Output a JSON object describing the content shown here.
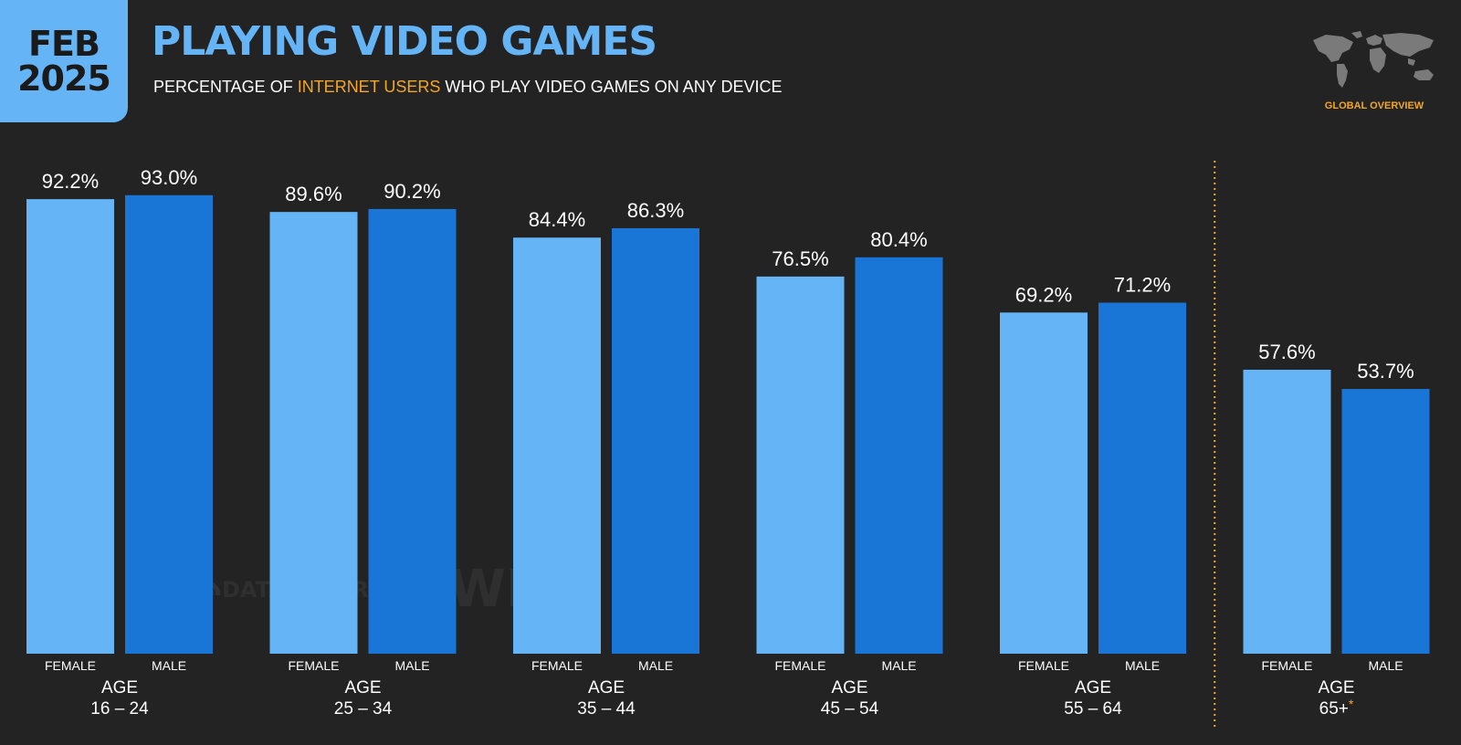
{
  "header": {
    "date_month": "FEB",
    "date_year": "2025",
    "title": "PLAYING VIDEO GAMES",
    "subtitle_pre": "PERCENTAGE OF ",
    "subtitle_highlight": "INTERNET USERS",
    "subtitle_post": " WHO PLAY VIDEO GAMES ON ANY DEVICE"
  },
  "badge": {
    "label": "GLOBAL OVERVIEW",
    "icon": "world-map-icon"
  },
  "watermarks": {
    "datareportal": "DATAREPORTAL",
    "gwi": "GWI."
  },
  "colors": {
    "background": "#232323",
    "female": "#64b4f6",
    "male": "#1976d6",
    "accent": "#f5a623",
    "title": "#64b4f6"
  },
  "chart_data": {
    "type": "bar",
    "group_prefix": "AGE",
    "categories": [
      "16 – 24",
      "25 – 34",
      "35 – 44",
      "45 – 54",
      "55 – 64",
      "65+"
    ],
    "category_markers": [
      "",
      "",
      "",
      "",
      "",
      "*"
    ],
    "series": [
      {
        "name": "FEMALE",
        "values": [
          92.2,
          89.6,
          84.4,
          76.5,
          69.2,
          57.6
        ]
      },
      {
        "name": "MALE",
        "values": [
          93.0,
          90.2,
          86.3,
          80.4,
          71.2,
          53.7
        ]
      }
    ],
    "value_suffix": "%",
    "ylim": [
      0,
      100
    ],
    "grid": false,
    "separator_before_index": 5
  }
}
